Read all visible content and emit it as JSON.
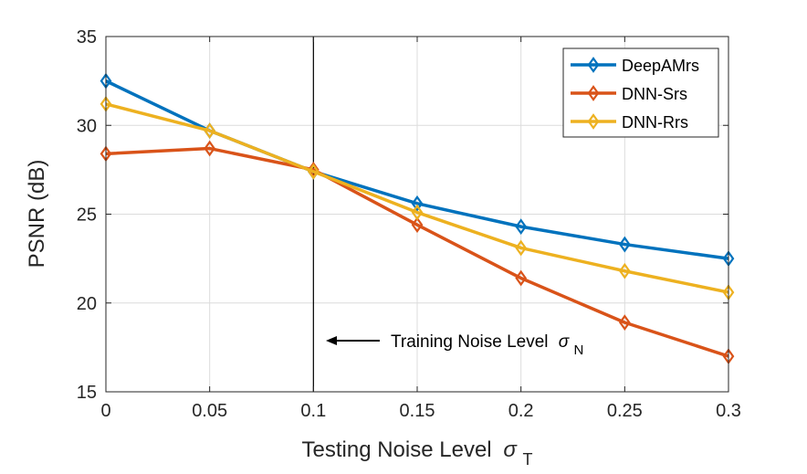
{
  "chart_data": {
    "type": "line",
    "xlabel": "Testing Noise Level",
    "xlabel_symbol": "σ",
    "xlabel_subscript": "T",
    "ylabel": "PSNR (dB)",
    "xlim": [
      0,
      0.3
    ],
    "ylim": [
      15,
      35
    ],
    "grid": true,
    "x": [
      0,
      0.05,
      0.1,
      0.15,
      0.2,
      0.25,
      0.3
    ],
    "x_tick_labels": [
      "0",
      "0.05",
      "0.1",
      "0.15",
      "0.2",
      "0.25",
      "0.3"
    ],
    "y_ticks": [
      15,
      20,
      25,
      30,
      35
    ],
    "y_tick_labels": [
      "15",
      "20",
      "25",
      "30",
      "35"
    ],
    "legend_position": "top-right",
    "series": [
      {
        "name": "DeepAMrs",
        "color": "#0072BD",
        "values": [
          32.5,
          29.7,
          27.4,
          25.6,
          24.3,
          23.3,
          22.5
        ]
      },
      {
        "name": "DNN-Srs",
        "color": "#D95319",
        "values": [
          28.4,
          28.7,
          27.5,
          24.4,
          21.4,
          18.9,
          17.0
        ]
      },
      {
        "name": "DNN-Rrs",
        "color": "#EDB120",
        "values": [
          31.2,
          29.7,
          27.4,
          25.1,
          23.1,
          21.8,
          20.6
        ]
      }
    ],
    "vline": {
      "x": 0.1
    },
    "annotation": {
      "text": "Training Noise Level",
      "symbol": "σ",
      "subscript": "N",
      "arrow": "left"
    }
  }
}
